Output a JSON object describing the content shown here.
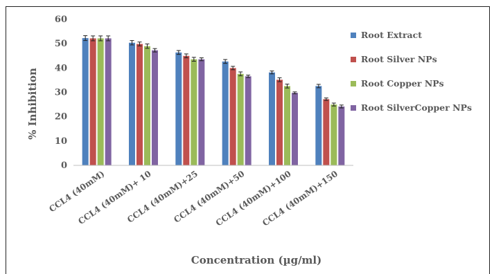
{
  "chart_data": {
    "type": "bar",
    "xlabel": "Concentration (µg/ml)",
    "ylabel": "% Inhibition",
    "ylim": [
      0,
      60
    ],
    "yticks": [
      0,
      10,
      20,
      30,
      40,
      50,
      60
    ],
    "grid": false,
    "legend_position": "right",
    "error_bars": true,
    "categories": [
      "CCL4 (40mM)",
      "CCL4 (40mM)+ 10",
      "CCL4 (40mM)+25",
      "CCL4 (40mM)+50",
      "CCL4 (40mM)+100",
      "CCL4 (40mM)+150"
    ],
    "series": [
      {
        "name": "Root Extract",
        "color": "#4F81BD",
        "values": [
          52.3,
          50.4,
          46.4,
          42.7,
          38.2,
          32.6
        ],
        "errors": [
          1.0,
          0.9,
          0.8,
          0.8,
          0.6,
          0.7
        ]
      },
      {
        "name": "Root Silver NPs",
        "color": "#C0504D",
        "values": [
          52.2,
          49.9,
          45.0,
          40.0,
          35.2,
          27.2
        ],
        "errors": [
          1.0,
          0.8,
          0.8,
          0.7,
          0.8,
          0.5
        ]
      },
      {
        "name": "Root Copper NPs",
        "color": "#9BBB59",
        "values": [
          52.2,
          49.0,
          43.6,
          37.6,
          32.6,
          25.0
        ],
        "errors": [
          1.0,
          0.9,
          0.8,
          0.8,
          0.8,
          0.6
        ]
      },
      {
        "name": "Root SilverCopper NPs",
        "color": "#8064A2",
        "values": [
          52.2,
          47.3,
          43.6,
          36.6,
          29.8,
          24.2
        ],
        "errors": [
          1.0,
          0.7,
          0.6,
          0.5,
          0.4,
          0.6
        ]
      }
    ]
  }
}
